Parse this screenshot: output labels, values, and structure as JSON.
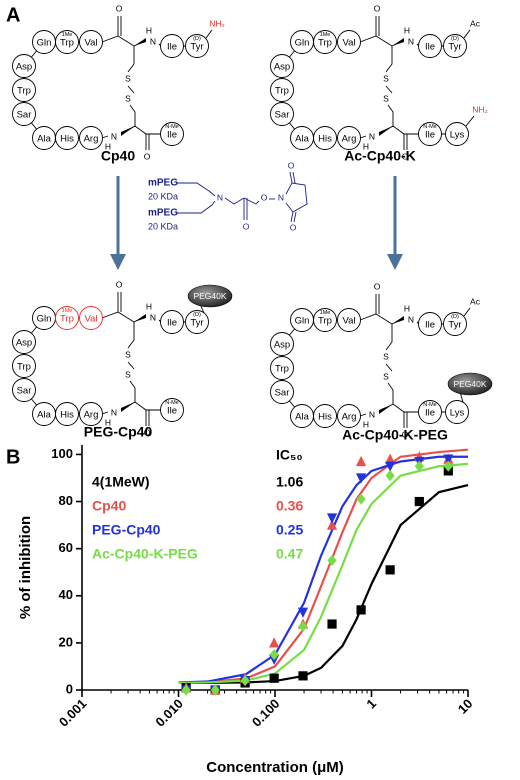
{
  "panel_a": {
    "label": "A",
    "backbone_atoms": [
      "O",
      "H",
      "N",
      "S",
      "S",
      "N",
      "H",
      "O"
    ],
    "molecules": [
      {
        "name": "Cp40",
        "residues": [
          {
            "label": "Gln"
          },
          {
            "label": "Trp",
            "mod": "1Me"
          },
          {
            "label": "Val"
          },
          {
            "label": "Asp"
          },
          {
            "label": "Trp"
          },
          {
            "label": "Sar"
          },
          {
            "label": "Ala"
          },
          {
            "label": "His"
          },
          {
            "label": "Arg"
          },
          {
            "label": "Ile"
          },
          {
            "label": "Tyr",
            "mod": "(D)"
          },
          {
            "label": "Ile",
            "mod": "N-Me"
          }
        ],
        "tyr_end": "NH₂"
      },
      {
        "name": "Ac-Cp40-K",
        "residues": [
          {
            "label": "Gln"
          },
          {
            "label": "Trp",
            "mod": "1Me"
          },
          {
            "label": "Val"
          },
          {
            "label": "Asp"
          },
          {
            "label": "Trp"
          },
          {
            "label": "Sar"
          },
          {
            "label": "Ala"
          },
          {
            "label": "His"
          },
          {
            "label": "Arg"
          },
          {
            "label": "Ile"
          },
          {
            "label": "Tyr",
            "mod": "(D)"
          },
          {
            "label": "Ile",
            "mod": "N-Me"
          },
          {
            "label": "Lys"
          }
        ],
        "tyr_end": "Ac",
        "lys_end": "NH₂"
      },
      {
        "name": "PEG-Cp40",
        "residues": [
          {
            "label": "Gln"
          },
          {
            "label": "Trp",
            "mod": "1Me",
            "highlighted": true
          },
          {
            "label": "Val",
            "highlighted": true
          },
          {
            "label": "Asp"
          },
          {
            "label": "Trp"
          },
          {
            "label": "Sar"
          },
          {
            "label": "Ala"
          },
          {
            "label": "His"
          },
          {
            "label": "Arg"
          },
          {
            "label": "Ile"
          },
          {
            "label": "Tyr",
            "mod": "(D)"
          },
          {
            "label": "Ile",
            "mod": "N-Me"
          }
        ],
        "tyr_peg": "PEG40K"
      },
      {
        "name": "Ac-Cp40-K-PEG",
        "residues": [
          {
            "label": "Gln"
          },
          {
            "label": "Trp",
            "mod": "1Me"
          },
          {
            "label": "Val"
          },
          {
            "label": "Asp"
          },
          {
            "label": "Trp"
          },
          {
            "label": "Sar"
          },
          {
            "label": "Ala"
          },
          {
            "label": "His"
          },
          {
            "label": "Arg"
          },
          {
            "label": "Ile"
          },
          {
            "label": "Tyr",
            "mod": "(D)"
          },
          {
            "label": "Ile",
            "mod": "N-Me"
          },
          {
            "label": "Lys"
          }
        ],
        "tyr_end": "Ac",
        "lys_peg": "PEG40K"
      }
    ],
    "reagent": {
      "groups": [
        "mPEG",
        "20 KDa",
        "mPEG",
        "20 KDa"
      ],
      "atoms": [
        "N",
        "O",
        "O",
        "N",
        "O",
        "O"
      ]
    }
  },
  "chart_data": {
    "type": "scatter",
    "panel_label": "B",
    "legend_title": "IC₅₀",
    "xlabel": "Concentration (μM)",
    "ylabel": "% of inhibition",
    "xscale": "log",
    "xlim": [
      0.001,
      10
    ],
    "xticks": [
      {
        "value": 0.001,
        "label": "0.001"
      },
      {
        "value": 0.01,
        "label": "0.010"
      },
      {
        "value": 0.1,
        "label": "0.100"
      },
      1,
      10
    ],
    "ylim": [
      0,
      104
    ],
    "yticks": [
      0,
      20,
      40,
      60,
      80,
      100
    ],
    "x": [
      0.012,
      0.024,
      0.049,
      0.098,
      0.195,
      0.39,
      0.78,
      1.56,
      3.13,
      6.25
    ],
    "fit_x": [
      0.01,
      0.02,
      0.05,
      0.1,
      0.2,
      0.3,
      0.5,
      0.7,
      1,
      2,
      5,
      10
    ],
    "series": [
      {
        "name": "4(1MeW)",
        "color": "#000000",
        "marker": "square",
        "ic50": 1.06,
        "values": [
          1,
          0,
          3,
          5,
          6,
          28,
          34,
          51,
          80,
          93
        ],
        "fit_values": [
          3,
          3,
          3.2,
          3.8,
          6,
          9.4,
          18.7,
          30,
          45,
          70,
          84,
          87
        ]
      },
      {
        "name": "Cp40",
        "color": "#e8504a",
        "marker": "triangle-up",
        "ic50": 0.36,
        "values": [
          1,
          0,
          5,
          20,
          28,
          70,
          97,
          98,
          99,
          98
        ],
        "fit_values": [
          3.1,
          3.3,
          4.9,
          10,
          26,
          44,
          67,
          81,
          90,
          99,
          101,
          102
        ]
      },
      {
        "name": "PEG-Cp40",
        "color": "#2233dd",
        "marker": "triangle-down",
        "ic50": 0.25,
        "values": [
          0,
          0,
          4,
          13,
          33,
          73,
          90,
          95,
          97,
          98
        ],
        "fit_values": [
          3.2,
          3.6,
          6.7,
          15,
          37,
          57,
          78,
          87,
          93,
          97,
          99,
          99
        ]
      },
      {
        "name": "Ac-Cp40-K-PEG",
        "color": "#77dd44",
        "marker": "diamond",
        "ic50": 0.47,
        "values": [
          0,
          0,
          4,
          15,
          27,
          55,
          81,
          91,
          95,
          95
        ],
        "fit_values": [
          3,
          3.2,
          4,
          7,
          17,
          31,
          53,
          68,
          79,
          91,
          95,
          96
        ]
      }
    ]
  }
}
